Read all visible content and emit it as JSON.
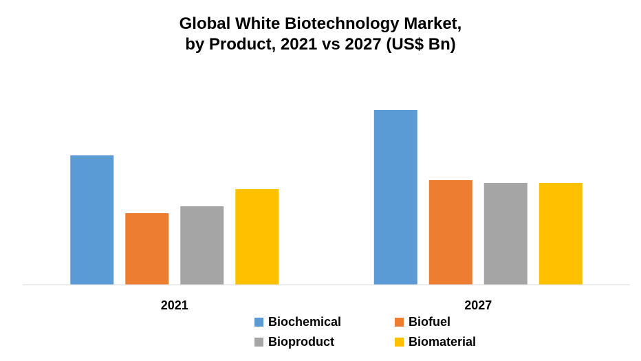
{
  "chart_data": {
    "type": "bar",
    "title": [
      "Global White Biotechnology Market,",
      "by Product, 2021 vs 2027 (US$ Bn)"
    ],
    "categories": [
      "2021",
      "2027"
    ],
    "series": [
      {
        "name": "Biochemical",
        "color": "#5B9BD5",
        "values": [
          188,
          254
        ]
      },
      {
        "name": "Biofuel",
        "color": "#ED7D31",
        "values": [
          104,
          152
        ]
      },
      {
        "name": "Bioproduct",
        "color": "#A5A5A5",
        "values": [
          114,
          148
        ]
      },
      {
        "name": "Biomaterial",
        "color": "#FFC000",
        "values": [
          139,
          148
        ]
      }
    ],
    "xlabel": "",
    "ylabel": "",
    "ylim": [
      0,
      280
    ],
    "grid": false,
    "legend_position": "bottom"
  }
}
